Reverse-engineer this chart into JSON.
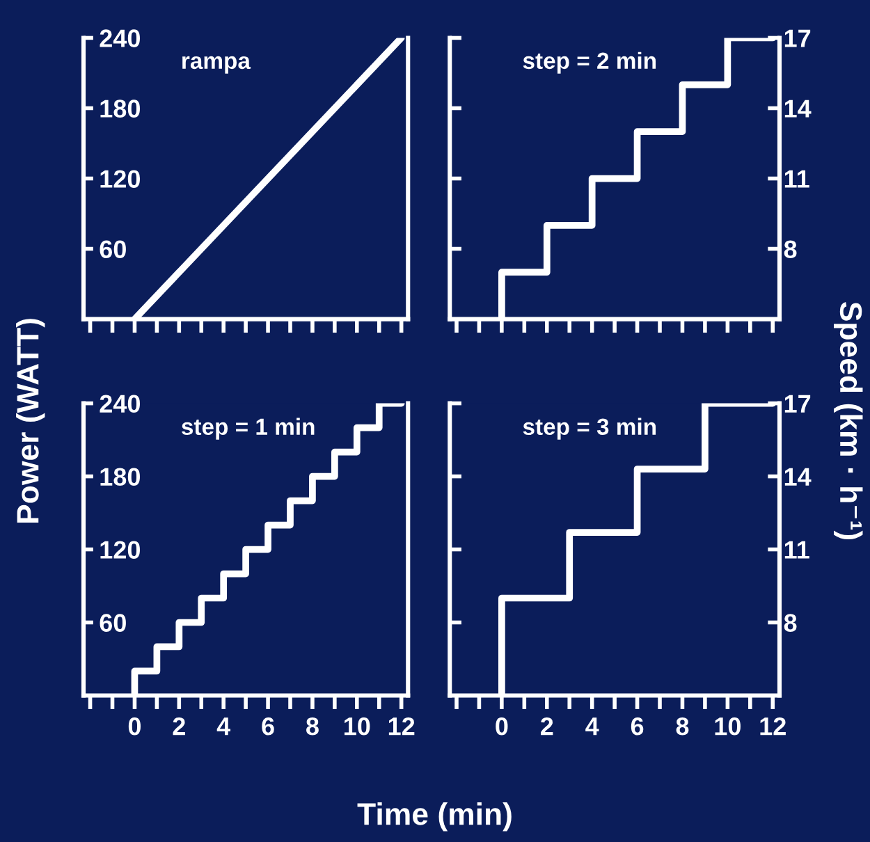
{
  "chart_data": [
    {
      "type": "line",
      "title": "rampa",
      "ylabel": "Power (WATT)",
      "x": [
        0,
        12
      ],
      "series": [
        {
          "color": "#ffffff",
          "values": [
            0,
            240
          ]
        }
      ],
      "xlim": [
        -2.3,
        12.3
      ],
      "ylim": [
        0,
        240
      ],
      "xticks": [
        {
          "value": -2,
          "label": null
        },
        {
          "value": -1,
          "label": null
        },
        {
          "value": 0,
          "label": null
        },
        {
          "value": 1,
          "label": null
        },
        {
          "value": 2,
          "label": null
        },
        {
          "value": 3,
          "label": null
        },
        {
          "value": 4,
          "label": null
        },
        {
          "value": 5,
          "label": null
        },
        {
          "value": 6,
          "label": null
        },
        {
          "value": 7,
          "label": null
        },
        {
          "value": 8,
          "label": null
        },
        {
          "value": 9,
          "label": null
        },
        {
          "value": 10,
          "label": null
        },
        {
          "value": 11,
          "label": null
        },
        {
          "value": 12,
          "label": null
        }
      ],
      "yticks": [
        60,
        120,
        180,
        240
      ],
      "tick_labels": "y"
    },
    {
      "type": "step",
      "title": "step = 2 min",
      "ylabel": "Speed (km · h⁻¹)",
      "x": [
        0,
        0,
        2,
        4,
        6,
        8,
        10,
        12
      ],
      "series": [
        {
          "color": "#ffffff",
          "values": [
            5,
            7,
            9,
            11,
            13,
            15,
            17,
            17
          ]
        }
      ],
      "xlim": [
        -2.3,
        12.3
      ],
      "ylim": [
        5,
        17
      ],
      "xticks": [
        {
          "value": -2,
          "label": null
        },
        {
          "value": -1,
          "label": null
        },
        {
          "value": 0,
          "label": null
        },
        {
          "value": 1,
          "label": null
        },
        {
          "value": 2,
          "label": null
        },
        {
          "value": 3,
          "label": null
        },
        {
          "value": 4,
          "label": null
        },
        {
          "value": 5,
          "label": null
        },
        {
          "value": 6,
          "label": null
        },
        {
          "value": 7,
          "label": null
        },
        {
          "value": 8,
          "label": null
        },
        {
          "value": 9,
          "label": null
        },
        {
          "value": 10,
          "label": null
        },
        {
          "value": 11,
          "label": null
        },
        {
          "value": 12,
          "label": null
        }
      ],
      "yticks": [
        8,
        11,
        14,
        17
      ],
      "tick_labels": "y"
    },
    {
      "type": "step",
      "title": "step = 1 min",
      "xlabel": "Time (min)",
      "x": [
        0,
        0,
        1,
        2,
        3,
        4,
        5,
        6,
        7,
        8,
        9,
        10,
        11,
        12
      ],
      "series": [
        {
          "color": "#ffffff",
          "values": [
            0,
            20,
            40,
            60,
            80,
            100,
            120,
            140,
            160,
            180,
            200,
            220,
            240,
            240
          ]
        }
      ],
      "xlim": [
        -2.3,
        12.3
      ],
      "ylim": [
        0,
        240
      ],
      "xticks": [
        {
          "value": -2,
          "label": null
        },
        {
          "value": -1,
          "label": null
        },
        0,
        {
          "value": 1,
          "label": null
        },
        2,
        {
          "value": 3,
          "label": null
        },
        4,
        {
          "value": 5,
          "label": null
        },
        6,
        {
          "value": 7,
          "label": null
        },
        8,
        {
          "value": 9,
          "label": null
        },
        10,
        {
          "value": 11,
          "label": null
        },
        12
      ],
      "yticks": [
        60,
        120,
        180,
        240
      ]
    },
    {
      "type": "step",
      "title": "step = 3 min",
      "x": [
        0,
        0,
        3,
        6,
        9,
        12
      ],
      "series": [
        {
          "color": "#ffffff",
          "values": [
            5,
            9,
            11.7,
            14.3,
            17,
            17
          ]
        }
      ],
      "xlim": [
        -2.3,
        12.3
      ],
      "ylim": [
        5,
        17
      ],
      "xticks": [
        {
          "value": -2,
          "label": null
        },
        {
          "value": -1,
          "label": null
        },
        0,
        {
          "value": 1,
          "label": null
        },
        2,
        {
          "value": 3,
          "label": null
        },
        4,
        {
          "value": 5,
          "label": null
        },
        6,
        {
          "value": 7,
          "label": null
        },
        8,
        {
          "value": 9,
          "label": null
        },
        10,
        {
          "value": 11,
          "label": null
        },
        12
      ],
      "yticks": [
        8,
        11,
        14,
        17
      ]
    }
  ]
}
